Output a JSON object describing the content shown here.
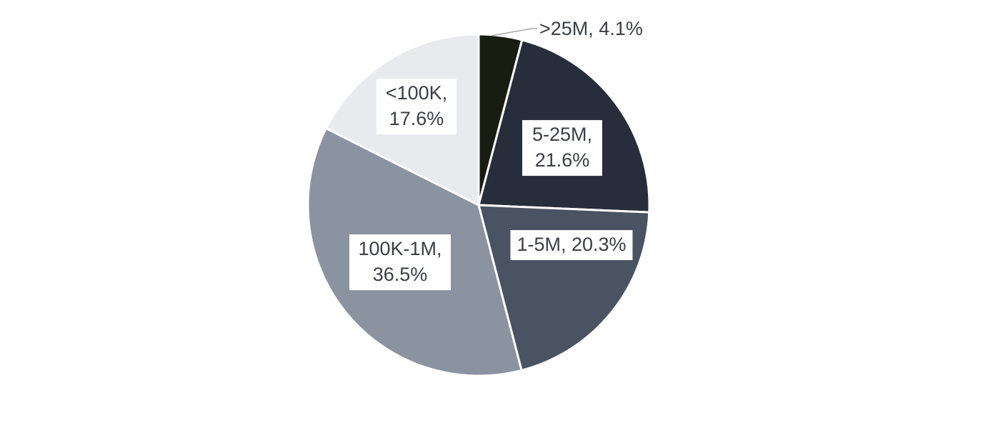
{
  "chart_data": {
    "type": "pie",
    "direction": "clockwise",
    "start_angle_deg": 0,
    "legend": "none",
    "background": "#FFFFFF",
    "label_background": "#FFFFFF",
    "label_text_color": "#3A3E46",
    "leader_line_color": "#A8A8A8",
    "slice_gap_color": "#FFFFFF",
    "slices": [
      {
        "label": ">25M",
        "value": 4.1,
        "color": "#191C11",
        "label_text": ">25M, 4.1%",
        "label_position": "outside"
      },
      {
        "label": "5-25M",
        "value": 21.6,
        "color": "#272D3B",
        "label_text": "5-25M, 21.6%",
        "label_position": "inside"
      },
      {
        "label": "1-5M",
        "value": 20.3,
        "color": "#4A5362",
        "label_text": "1-5M, 20.3%",
        "label_position": "inside"
      },
      {
        "label": "100K-1M",
        "value": 36.5,
        "color": "#8B93A1",
        "label_text": "100K-1M, 36.5%",
        "label_position": "inside"
      },
      {
        "label": "<100K",
        "value": 17.6,
        "color": "#E9EAEE",
        "label_text": "<100K, 17.6%",
        "label_position": "inside"
      }
    ]
  }
}
